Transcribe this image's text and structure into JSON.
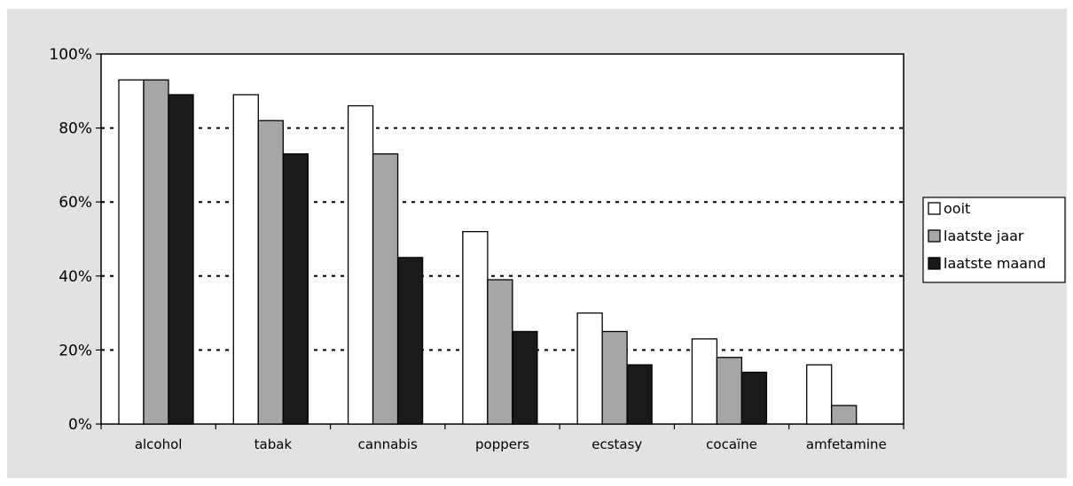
{
  "chart_data": {
    "type": "bar",
    "title": "",
    "xlabel": "",
    "ylabel": "",
    "categories": [
      "alcohol",
      "tabak",
      "cannabis",
      "poppers",
      "ecstasy",
      "cocaïne",
      "amfetamine"
    ],
    "series": [
      {
        "name": "ooit",
        "color": "#ffffff",
        "values": [
          93,
          89,
          86,
          52,
          30,
          23,
          16
        ]
      },
      {
        "name": "laatste jaar",
        "color": "#a6a6a6",
        "values": [
          93,
          82,
          73,
          39,
          25,
          18,
          5
        ]
      },
      {
        "name": "laatste maand",
        "color": "#1a1a1a",
        "values": [
          89,
          73,
          45,
          25,
          16,
          14,
          0
        ]
      }
    ],
    "ylim": [
      0,
      100
    ],
    "yticks": [
      "0%",
      "20%",
      "40%",
      "60%",
      "80%",
      "100%"
    ],
    "ytick_values": [
      0,
      20,
      40,
      60,
      80,
      100
    ],
    "grid": "dotted horizontal",
    "legend_position": "right"
  }
}
